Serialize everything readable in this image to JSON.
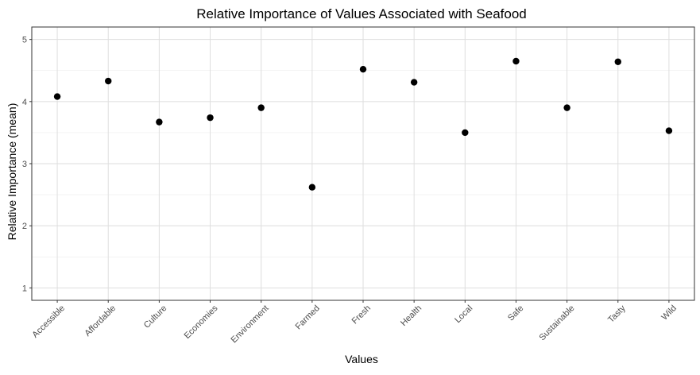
{
  "chart_data": {
    "type": "scatter",
    "title": "Relative Importance of Values Associated with Seafood",
    "xlabel": "Values",
    "ylabel": "Relative Importance (mean)",
    "categories": [
      "Accessible",
      "Affordable",
      "Culture",
      "Economies",
      "Environment",
      "Farmed",
      "Fresh",
      "Health",
      "Local",
      "Safe",
      "Sustainable",
      "Tasty",
      "Wild"
    ],
    "values": [
      4.08,
      4.33,
      3.67,
      3.74,
      3.9,
      2.62,
      4.52,
      4.31,
      3.5,
      4.65,
      3.9,
      4.64,
      3.53
    ],
    "ylim": [
      0.8,
      5.2
    ],
    "yticks": [
      1,
      2,
      3,
      4,
      5
    ],
    "grid": true,
    "legend": "none",
    "colors": {
      "point": "#000000",
      "grid": "#dedede",
      "border": "#333333",
      "text": "#000000",
      "tick_text": "#4d4d4d"
    }
  }
}
